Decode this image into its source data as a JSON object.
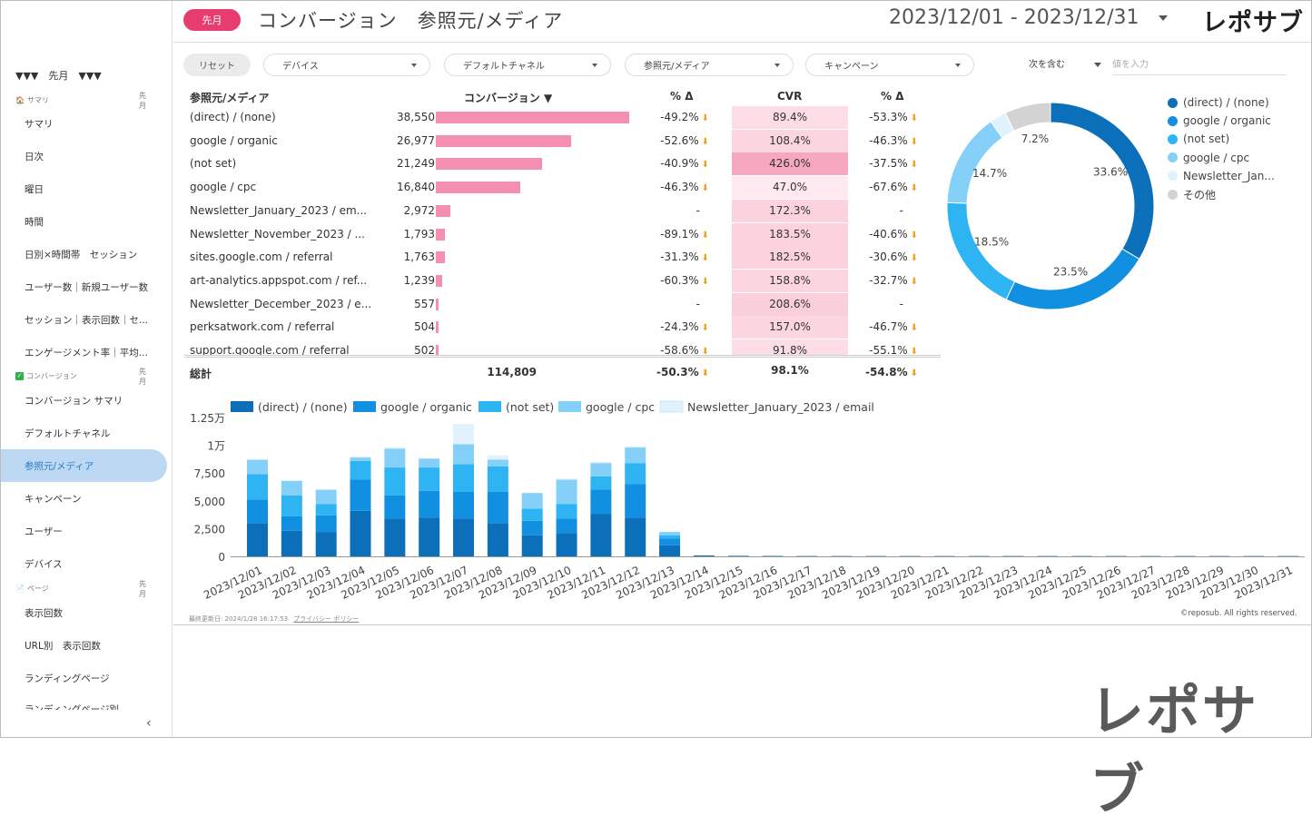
{
  "sidebar": {
    "month_label": "▼▼▼　先月　▼▼▼",
    "sections": [
      {
        "icon": "home-icon",
        "label": "サマリ",
        "period": "先月"
      },
      {
        "icon": "check-icon",
        "label": "コンバージョン",
        "period": "先月"
      },
      {
        "icon": "page-icon",
        "label": "ページ",
        "period": "先月"
      }
    ],
    "items": [
      "サマリ",
      "日次",
      "曜日",
      "時間",
      "日別×時間帯　セッション",
      "ユーザー数｜新規ユーザー数",
      "セッション｜表示回数｜セ...",
      "エンゲージメント率｜平均...",
      "コンバージョン サマリ",
      "デフォルトチャネル",
      "参照元/メディア",
      "キャンペーン",
      "ユーザー",
      "デバイス",
      "表示回数",
      "URL別　表示回数",
      "ランディングページ",
      "ランディングページ別..."
    ],
    "collapse": "‹"
  },
  "header": {
    "badge": "先月",
    "title": "コンバージョン　参照元/メディア",
    "date_range": "2023/12/01 - 2023/12/31",
    "logo": "レポサブ"
  },
  "filters": {
    "reset": "リセット",
    "device": "デバイス",
    "channel": "デフォルトチャネル",
    "source": "参照元/メディア",
    "campaign": "キャンペーン",
    "match": "次を含む",
    "value_placeholder": "値を入力"
  },
  "table": {
    "headers": {
      "name": "参照元/メディア",
      "conv": "コンバージョン ▼",
      "delta": "% Δ",
      "cvr": "CVR",
      "delta2": "% Δ"
    },
    "rows": [
      {
        "name": "(direct) / (none)",
        "value": "38,550",
        "num": 38550,
        "delta": "-49.2%",
        "down": true,
        "cvr": "89.4%",
        "cvr_color": "#fcdde6",
        "delta2": "-53.3%",
        "down2": true
      },
      {
        "name": "google / organic",
        "value": "26,977",
        "num": 26977,
        "delta": "-52.6%",
        "down": true,
        "cvr": "108.4%",
        "cvr_color": "#fbd6e1",
        "delta2": "-46.3%",
        "down2": true
      },
      {
        "name": "(not set)",
        "value": "21,249",
        "num": 21249,
        "delta": "-40.9%",
        "down": true,
        "cvr": "426.0%",
        "cvr_color": "#f6a8c0",
        "delta2": "-37.5%",
        "down2": true
      },
      {
        "name": "google / cpc",
        "value": "16,840",
        "num": 16840,
        "delta": "-46.3%",
        "down": true,
        "cvr": "47.0%",
        "cvr_color": "#fde9ef",
        "delta2": "-67.6%",
        "down2": true
      },
      {
        "name": "Newsletter_January_2023 / em...",
        "value": "2,972",
        "num": 2972,
        "delta": "-",
        "down": false,
        "cvr": "172.3%",
        "cvr_color": "#fbd3df",
        "delta2": "-",
        "down2": false
      },
      {
        "name": "Newsletter_November_2023 / ...",
        "value": "1,793",
        "num": 1793,
        "delta": "-89.1%",
        "down": true,
        "cvr": "183.5%",
        "cvr_color": "#fbd2de",
        "delta2": "-40.6%",
        "down2": true
      },
      {
        "name": "sites.google.com / referral",
        "value": "1,763",
        "num": 1763,
        "delta": "-31.3%",
        "down": true,
        "cvr": "182.5%",
        "cvr_color": "#fbd2de",
        "delta2": "-30.6%",
        "down2": true
      },
      {
        "name": "art-analytics.appspot.com / ref...",
        "value": "1,239",
        "num": 1239,
        "delta": "-60.3%",
        "down": true,
        "cvr": "158.8%",
        "cvr_color": "#fbd5e0",
        "delta2": "-32.7%",
        "down2": true
      },
      {
        "name": "Newsletter_December_2023 / e...",
        "value": "557",
        "num": 557,
        "delta": "-",
        "down": false,
        "cvr": "208.6%",
        "cvr_color": "#face da",
        "delta2": "-",
        "down2": false
      },
      {
        "name": "perksatwork.com / referral",
        "value": "504",
        "num": 504,
        "delta": "-24.3%",
        "down": true,
        "cvr": "157.0%",
        "cvr_color": "#fbd5e0",
        "delta2": "-46.7%",
        "down2": true
      },
      {
        "name": "support.google.com / referral",
        "value": "502",
        "num": 502,
        "delta": "-58.6%",
        "down": true,
        "cvr": "91.8%",
        "cvr_color": "#fcdde6",
        "delta2": "-55.1%",
        "down2": true
      }
    ],
    "total": {
      "label": "総計",
      "value": "114,809",
      "delta": "-50.3%",
      "cvr": "98.1%",
      "delta2": "-54.8%"
    }
  },
  "chart_data": [
    {
      "type": "pie",
      "donut": true,
      "categories": [
        "(direct) / (none)",
        "google / organic",
        "(not set)",
        "google / cpc",
        "Newsletter_Jan...",
        "その他"
      ],
      "values": [
        33.6,
        23.5,
        18.5,
        14.7,
        2.6,
        7.2
      ],
      "labels": [
        "33.6%",
        "23.5%",
        "18.5%",
        "14.7%",
        "",
        "7.2%"
      ],
      "colors": [
        "#0b6fba",
        "#118fe0",
        "#2eb4f2",
        "#84d0f8",
        "#dff2fd",
        "#d3d3d3"
      ]
    },
    {
      "type": "bar",
      "stacked": true,
      "categories": [
        "2023/12/01",
        "2023/12/02",
        "2023/12/03",
        "2023/12/04",
        "2023/12/05",
        "2023/12/06",
        "2023/12/07",
        "2023/12/08",
        "2023/12/09",
        "2023/12/10",
        "2023/12/11",
        "2023/12/12",
        "2023/12/13",
        "2023/12/14",
        "2023/12/15",
        "2023/12/16",
        "2023/12/17",
        "2023/12/18",
        "2023/12/19",
        "2023/12/20",
        "2023/12/21",
        "2023/12/22",
        "2023/12/23",
        "2023/12/24",
        "2023/12/25",
        "2023/12/26",
        "2023/12/27",
        "2023/12/28",
        "2023/12/29",
        "2023/12/30",
        "2023/12/31"
      ],
      "series": [
        {
          "name": "(direct) / (none)",
          "color": "#0b6fba",
          "values": [
            3000,
            2300,
            2200,
            4100,
            3400,
            3500,
            3400,
            3000,
            1900,
            2100,
            3800,
            3500,
            1000,
            80,
            50,
            40,
            30,
            30,
            30,
            30,
            30,
            30,
            30,
            30,
            30,
            30,
            30,
            30,
            30,
            30,
            30
          ]
        },
        {
          "name": "google / organic",
          "color": "#118fe0",
          "values": [
            2100,
            1300,
            1500,
            2800,
            2100,
            2400,
            2400,
            2800,
            1300,
            1300,
            2200,
            3000,
            600,
            0,
            0,
            0,
            0,
            0,
            0,
            0,
            0,
            0,
            0,
            0,
            0,
            0,
            0,
            0,
            0,
            0,
            0
          ]
        },
        {
          "name": "(not set)",
          "color": "#2eb4f2",
          "values": [
            2300,
            1900,
            1000,
            1700,
            2500,
            2100,
            2500,
            2300,
            1100,
            1300,
            1200,
            1900,
            300,
            0,
            0,
            0,
            0,
            0,
            0,
            0,
            0,
            0,
            0,
            0,
            0,
            0,
            0,
            0,
            0,
            0,
            0
          ]
        },
        {
          "name": "google / cpc",
          "color": "#84d0f8",
          "values": [
            1300,
            1300,
            1300,
            300,
            1700,
            800,
            1800,
            600,
            1400,
            2200,
            1200,
            1400,
            300,
            0,
            0,
            0,
            0,
            0,
            0,
            0,
            0,
            0,
            0,
            0,
            0,
            0,
            0,
            0,
            0,
            0,
            0
          ]
        },
        {
          "name": "Newsletter_January_2023 / email",
          "color": "#dff2fd",
          "values": [
            0,
            0,
            0,
            100,
            100,
            0,
            1800,
            400,
            0,
            100,
            100,
            100,
            0,
            0,
            0,
            0,
            0,
            0,
            0,
            0,
            0,
            0,
            0,
            0,
            0,
            0,
            0,
            0,
            0,
            0,
            0
          ]
        }
      ],
      "yticks": [
        "0",
        "2,500",
        "5,000",
        "7,500",
        "1万",
        "1.25万"
      ],
      "ylim": [
        0,
        12500
      ]
    }
  ],
  "footer": {
    "updated": "最終更新日: 2024/1/28 16:17:53",
    "privacy": "プライバシー ポリシー",
    "copyright": "©reposub. All rights reserved.",
    "bottom_logo": "レポサブ"
  }
}
